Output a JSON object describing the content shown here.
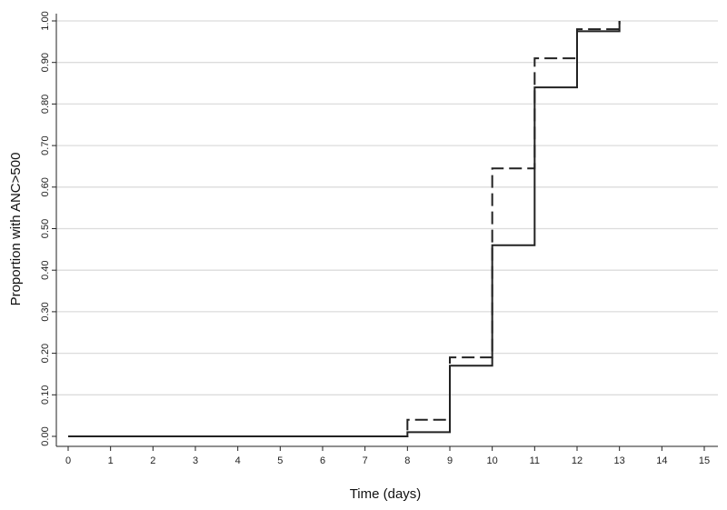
{
  "chart_data": {
    "type": "line",
    "step": true,
    "xlabel": "Time (days)",
    "ylabel": "Proportion with ANC>500",
    "xlim": [
      0,
      15
    ],
    "ylim": [
      0,
      1
    ],
    "x_ticks": [
      0,
      1,
      2,
      3,
      4,
      5,
      6,
      7,
      8,
      9,
      10,
      11,
      12,
      13,
      14,
      15
    ],
    "x_tick_labels": [
      "0",
      "1",
      "2",
      "3",
      "4",
      "5",
      "6",
      "7",
      "8",
      "9",
      "10",
      "11",
      "12",
      "13",
      "14",
      "15"
    ],
    "y_ticks": [
      0,
      0.1,
      0.2,
      0.3,
      0.4,
      0.5,
      0.6,
      0.7,
      0.8,
      0.9,
      1.0
    ],
    "y_tick_labels": [
      "0.00",
      "0.10",
      "0.20",
      "0.30",
      "0.40",
      "0.50",
      "0.60",
      "0.70",
      "0.80",
      "0.90",
      "1.00"
    ],
    "grid": "horizontal",
    "series": [
      {
        "line_style": "solid",
        "color": "#222222",
        "x": [
          0,
          8,
          9,
          10,
          11,
          12,
          13
        ],
        "y": [
          0,
          0.01,
          0.17,
          0.46,
          0.84,
          0.975,
          1.0
        ]
      },
      {
        "line_style": "dashed",
        "color": "#222222",
        "x": [
          0,
          8,
          9,
          10,
          11,
          12,
          13
        ],
        "y": [
          0,
          0.04,
          0.19,
          0.645,
          0.91,
          0.98,
          1.0
        ]
      }
    ]
  }
}
